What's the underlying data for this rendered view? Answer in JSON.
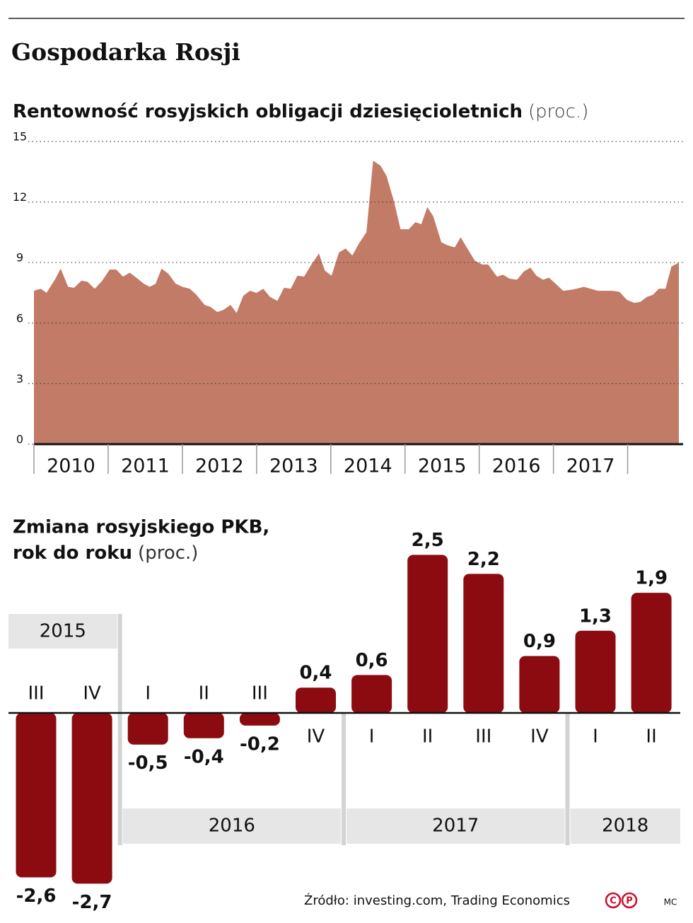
{
  "header": {
    "title": "Gospodarka Rosji"
  },
  "chart_data": [
    {
      "type": "area",
      "title": "Rentowność rosyjskich obligacji dziesięcioletnich",
      "unit": "(proc.)",
      "color": "#c17b66",
      "grid": true,
      "x": [
        2010.0,
        2010.09,
        2010.17,
        2010.29,
        2010.36,
        2010.46,
        2010.54,
        2010.64,
        2010.72,
        2010.82,
        2010.92,
        2011.02,
        2011.11,
        2011.2,
        2011.29,
        2011.38,
        2011.48,
        2011.56,
        2011.64,
        2011.72,
        2011.81,
        2011.91,
        2012.0,
        2012.1,
        2012.19,
        2012.3,
        2012.38,
        2012.47,
        2012.55,
        2012.65,
        2012.73,
        2012.82,
        2012.91,
        2013.0,
        2013.09,
        2013.18,
        2013.28,
        2013.37,
        2013.46,
        2013.55,
        2013.64,
        2013.73,
        2013.84,
        2013.92,
        2014.01,
        2014.11,
        2014.2,
        2014.29,
        2014.38,
        2014.48,
        2014.57,
        2014.67,
        2014.75,
        2014.85,
        2014.94,
        2015.05,
        2015.14,
        2015.22,
        2015.3,
        2015.38,
        2015.49,
        2015.58,
        2015.67,
        2015.75,
        2015.84,
        2015.94,
        2016.04,
        2016.12,
        2016.24,
        2016.32,
        2016.41,
        2016.51,
        2016.6,
        2016.69,
        2016.77,
        2016.86,
        2016.94,
        2017.03,
        2017.13,
        2017.23,
        2017.31,
        2017.41,
        2017.5,
        2017.6,
        2017.7,
        2017.79,
        2017.89,
        2017.99,
        2018.09,
        2018.17,
        2018.26,
        2018.34,
        2018.42,
        2018.51,
        2018.59,
        2018.69
      ],
      "values": [
        7.6,
        7.7,
        7.5,
        8.2,
        8.7,
        7.8,
        7.75,
        8.1,
        8.05,
        7.7,
        8.1,
        8.65,
        8.65,
        8.3,
        8.5,
        8.25,
        7.95,
        7.8,
        7.95,
        8.7,
        8.45,
        7.95,
        7.8,
        7.7,
        7.4,
        6.9,
        6.8,
        6.55,
        6.65,
        6.9,
        6.5,
        7.35,
        7.6,
        7.5,
        7.7,
        7.3,
        7.1,
        7.75,
        7.7,
        8.35,
        8.3,
        8.85,
        9.45,
        8.6,
        8.35,
        9.5,
        9.7,
        9.35,
        9.95,
        10.5,
        14.05,
        13.8,
        13.3,
        12.05,
        10.65,
        10.65,
        11.0,
        10.9,
        11.75,
        11.3,
        10.0,
        9.85,
        9.75,
        10.25,
        9.7,
        9.1,
        8.9,
        8.9,
        8.3,
        8.4,
        8.2,
        8.15,
        8.55,
        8.75,
        8.35,
        8.15,
        8.25,
        7.95,
        7.6,
        7.65,
        7.7,
        7.8,
        7.7,
        7.6,
        7.6,
        7.6,
        7.55,
        7.15,
        7.0,
        7.05,
        7.3,
        7.4,
        7.7,
        7.7,
        8.8,
        9.0
      ],
      "xlim": [
        2010,
        2018.69
      ],
      "xticks": [
        2010,
        2011,
        2012,
        2013,
        2014,
        2015,
        2016,
        2017,
        2018
      ],
      "categories": [
        "2010",
        "2011",
        "2012",
        "2013",
        "2014",
        "2015",
        "2016",
        "2017"
      ],
      "ylim": [
        0,
        15
      ],
      "yticks": [
        0,
        3,
        6,
        9,
        12,
        15
      ]
    },
    {
      "type": "bar",
      "title_lines": [
        "Zmiana rosyjskiego PKB,",
        "rok do roku"
      ],
      "unit": "(proc.)",
      "color": "#8b0b10",
      "categories": [
        "III",
        "IV",
        "I",
        "II",
        "III",
        "IV",
        "I",
        "II",
        "III",
        "IV",
        "I",
        "II"
      ],
      "years": [
        "2015",
        "2015",
        "2016",
        "2016",
        "2016",
        "2016",
        "2017",
        "2017",
        "2017",
        "2017",
        "2018",
        "2018"
      ],
      "values": [
        -2.6,
        -2.7,
        -0.5,
        -0.4,
        -0.2,
        0.4,
        0.6,
        2.5,
        2.2,
        0.9,
        1.3,
        1.9
      ],
      "value_labels": [
        "-2,6",
        "-2,7",
        "-0,5",
        "-0,4",
        "-0,2",
        "0,4",
        "0,6",
        "2,5",
        "2,2",
        "0,9",
        "1,3",
        "1,9"
      ]
    }
  ],
  "footer": {
    "source": "Źródło: investing.com, Trading Economics",
    "logo": [
      "C",
      "P"
    ],
    "credit": "MC"
  }
}
